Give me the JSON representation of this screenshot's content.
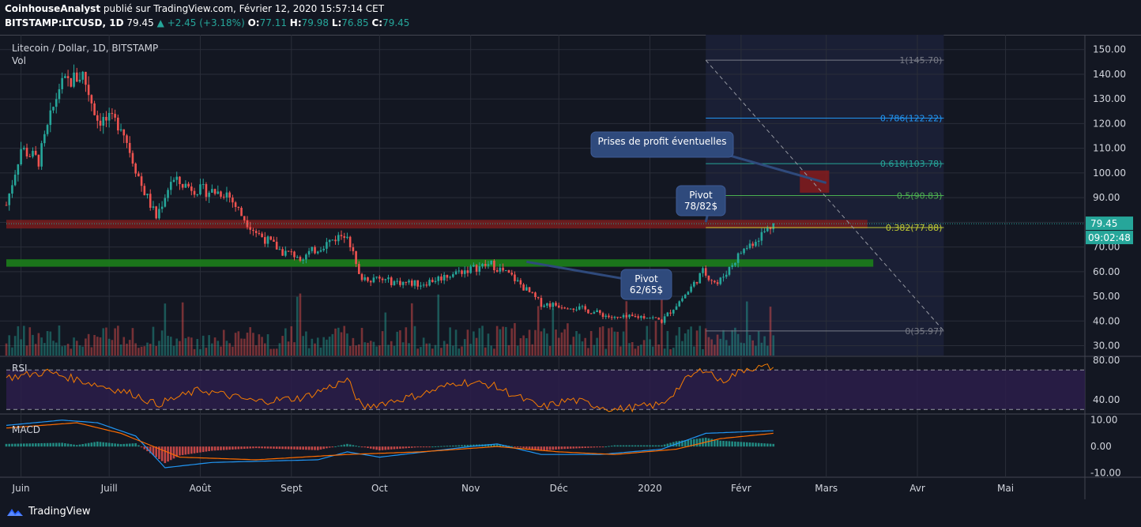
{
  "header": {
    "author": "CoinhouseAnalyst",
    "published": "publié sur TradingView.com, Février 12, 2020 15:57:14 CET",
    "ticker": "BITSTAMP:LTCUSD, 1D",
    "last": "79.45",
    "change": "+2.45 (+3.18%)",
    "o_label": "O:",
    "o_value": "77.11",
    "h_label": "H:",
    "h_value": "79.98",
    "l_label": "L:",
    "l_value": "76.85",
    "c_label": "C:",
    "c_value": "79.45"
  },
  "footer": {
    "brand": "TradingView",
    "logo_icon": "tradingview-logo-icon"
  },
  "colors": {
    "background": "#131722",
    "bull": "#26a69a",
    "bear": "#ef5350",
    "rsi_line": "#f57c00",
    "macd_line": "#2196f3",
    "signal_line": "#ff6d00",
    "grid": "#2a2e39",
    "callout": "#2f4a7c"
  },
  "chart_data": [
    {
      "type": "candlestick",
      "title": "Litecoin / Dollar, 1D, BITSTAMP",
      "volume_label": "Vol",
      "x_ticks": [
        "Juin",
        "Juill",
        "Août",
        "Sept",
        "Oct",
        "Nov",
        "Déc",
        "2020",
        "Févr",
        "Mars",
        "Avr",
        "Mai"
      ],
      "y_ticks": [
        "150.00",
        "140.00",
        "130.00",
        "120.00",
        "110.00",
        "100.00",
        "90.00",
        "80.00",
        "70.00",
        "60.00",
        "50.00",
        "40.00",
        "30.00"
      ],
      "ylim": [
        26,
        156
      ],
      "x_start": "2019-05-27",
      "x_end": "2020-05-28",
      "price_path": [
        [
          "2019-05-27",
          87
        ],
        [
          "2019-06-01",
          110
        ],
        [
          "2019-06-07",
          105
        ],
        [
          "2019-06-14",
          135
        ],
        [
          "2019-06-22",
          140
        ],
        [
          "2019-06-27",
          122
        ],
        [
          "2019-07-05",
          120
        ],
        [
          "2019-07-12",
          95
        ],
        [
          "2019-07-17",
          82
        ],
        [
          "2019-07-22",
          97
        ],
        [
          "2019-08-01",
          93
        ],
        [
          "2019-08-10",
          92
        ],
        [
          "2019-08-15",
          83
        ],
        [
          "2019-08-20",
          76
        ],
        [
          "2019-08-29",
          68
        ],
        [
          "2019-09-05",
          66
        ],
        [
          "2019-09-15",
          73
        ],
        [
          "2019-09-20",
          76
        ],
        [
          "2019-09-24",
          58
        ],
        [
          "2019-10-05",
          56
        ],
        [
          "2019-10-15",
          55
        ],
        [
          "2019-10-28",
          60
        ],
        [
          "2019-11-08",
          63
        ],
        [
          "2019-11-15",
          58
        ],
        [
          "2019-11-25",
          47
        ],
        [
          "2019-12-05",
          46
        ],
        [
          "2019-12-15",
          43
        ],
        [
          "2019-12-20",
          41
        ],
        [
          "2019-12-31",
          42
        ],
        [
          "2020-01-05",
          40
        ],
        [
          "2020-01-14",
          52
        ],
        [
          "2020-01-19",
          60
        ],
        [
          "2020-01-24",
          55
        ],
        [
          "2020-02-01",
          68
        ],
        [
          "2020-02-05",
          72
        ],
        [
          "2020-02-12",
          79.45
        ]
      ],
      "last_price": "79.45",
      "countdown": "09:02:48",
      "fibonacci": {
        "start_date": "2020-01-20",
        "end_date": "2020-04-10",
        "levels": [
          {
            "ratio": "1",
            "value": 145.7,
            "label": "1(145.70)",
            "color": "#787b86"
          },
          {
            "ratio": "0.786",
            "value": 122.22,
            "label": "0.786(122.22)",
            "color": "#2196f3"
          },
          {
            "ratio": "0.618",
            "value": 103.78,
            "label": "0.618(103.78)",
            "color": "#26a69a"
          },
          {
            "ratio": "0.5",
            "value": 90.83,
            "label": "0.5(90.83)",
            "color": "#4caf50"
          },
          {
            "ratio": "0.382",
            "value": 77.88,
            "label": "0.382(77.88)",
            "color": "#c0ca33"
          },
          {
            "ratio": "0",
            "value": 35.97,
            "label": "0(35.97)",
            "color": "#787b86"
          }
        ]
      },
      "zones": [
        {
          "name": "resistance",
          "low": 77.5,
          "high": 81,
          "color": "#7f1d1d",
          "end_date": "2020-03-15"
        },
        {
          "name": "support",
          "low": 62,
          "high": 65,
          "color": "#1b7a1b",
          "end_date": "2020-03-17"
        },
        {
          "name": "profit-target",
          "low": 92,
          "high": 101,
          "color": "#8b1a1a",
          "start_date": "2020-02-21",
          "end_date": "2020-03-02"
        }
      ],
      "annotations": [
        {
          "id": "profit",
          "text": "Prises de profit éventuelles",
          "target_date": "2020-03-01",
          "target_value": 96
        },
        {
          "id": "pivot-upper",
          "lines": [
            "Pivot",
            "78/82$"
          ],
          "target_date": "2020-01-20",
          "target_value": 80
        },
        {
          "id": "pivot-lower",
          "lines": [
            "Pivot",
            "62/65$"
          ],
          "target_date": "2019-11-20",
          "target_value": 64
        }
      ]
    },
    {
      "type": "line",
      "title": "RSI",
      "ylim": [
        27,
        83
      ],
      "y_ticks": [
        "80.00",
        "40.00"
      ],
      "bands": [
        70,
        30
      ],
      "series": [
        {
          "values": [
            [
              "2019-05-27",
              62
            ],
            [
              "2019-06-10",
              68
            ],
            [
              "2019-06-27",
              55
            ],
            [
              "2019-07-10",
              45
            ],
            [
              "2019-07-17",
              35
            ],
            [
              "2019-08-01",
              50
            ],
            [
              "2019-08-20",
              38
            ],
            [
              "2019-09-05",
              42
            ],
            [
              "2019-09-20",
              60
            ],
            [
              "2019-09-25",
              32
            ],
            [
              "2019-10-15",
              45
            ],
            [
              "2019-10-28",
              58
            ],
            [
              "2019-11-08",
              55
            ],
            [
              "2019-11-25",
              32
            ],
            [
              "2019-12-05",
              40
            ],
            [
              "2019-12-20",
              30
            ],
            [
              "2020-01-05",
              35
            ],
            [
              "2020-01-14",
              62
            ],
            [
              "2020-01-20",
              72
            ],
            [
              "2020-01-25",
              58
            ],
            [
              "2020-02-03",
              72
            ],
            [
              "2020-02-12",
              73
            ]
          ]
        }
      ]
    },
    {
      "type": "line",
      "title": "MACD",
      "ylim": [
        -11,
        12
      ],
      "y_ticks": [
        "10.00",
        "0.00",
        "-10.00"
      ],
      "series": [
        {
          "values": [
            [
              "2019-05-27",
              8
            ],
            [
              "2019-06-15",
              10
            ],
            [
              "2019-06-27",
              9
            ],
            [
              "2019-07-10",
              4
            ],
            [
              "2019-07-20",
              -8
            ],
            [
              "2019-08-05",
              -6
            ],
            [
              "2019-09-10",
              -5
            ],
            [
              "2019-09-20",
              -2
            ],
            [
              "2019-10-01",
              -4
            ],
            [
              "2019-11-01",
              0
            ],
            [
              "2019-11-10",
              1
            ],
            [
              "2019-11-25",
              -3
            ],
            [
              "2019-12-15",
              -3
            ],
            [
              "2020-01-05",
              -1
            ],
            [
              "2020-01-20",
              5
            ],
            [
              "2020-02-12",
              6
            ]
          ]
        },
        {
          "values": [
            [
              "2019-05-27",
              7
            ],
            [
              "2019-06-20",
              9
            ],
            [
              "2019-07-05",
              5
            ],
            [
              "2019-07-25",
              -4
            ],
            [
              "2019-08-20",
              -5
            ],
            [
              "2019-09-20",
              -3
            ],
            [
              "2019-10-15",
              -2
            ],
            [
              "2019-11-10",
              0
            ],
            [
              "2019-12-01",
              -2
            ],
            [
              "2019-12-20",
              -3
            ],
            [
              "2020-01-10",
              -1
            ],
            [
              "2020-01-25",
              3
            ],
            [
              "2020-02-12",
              5
            ]
          ]
        }
      ]
    }
  ]
}
